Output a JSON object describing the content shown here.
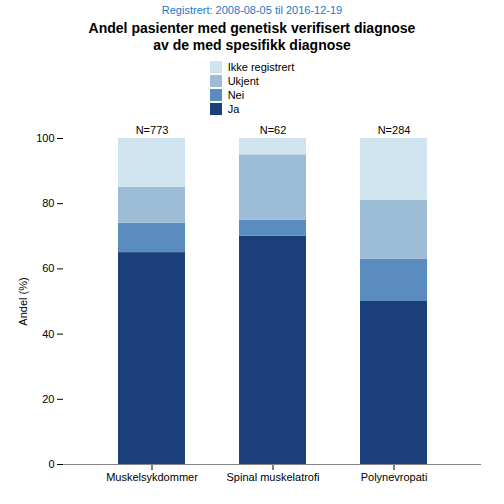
{
  "chart_data": {
    "type": "bar",
    "stacked": true,
    "title": "Andel pasienter med genetisk verifisert diagnose\nav de med spesifikk diagnose",
    "subtitle": "Registrert: 2008-08-05 til 2016-12-19",
    "ylabel": "Andel (%)",
    "categories": [
      "Muskelsykdommer",
      "Spinal muskelatrofi",
      "Polynevropati"
    ],
    "series": [
      {
        "name": "Ja",
        "color": "#1a3f7a",
        "values": [
          65,
          70,
          50
        ]
      },
      {
        "name": "Nei",
        "color": "#5b8cbf",
        "values": [
          9,
          5,
          13
        ]
      },
      {
        "name": "Ukjent",
        "color": "#9dbdd6",
        "values": [
          11,
          20,
          18
        ]
      },
      {
        "name": "Ikke registrert",
        "color": "#d0e5f0",
        "values": [
          15,
          5,
          19
        ]
      }
    ],
    "annotations": [
      {
        "category": "Muskelsykdommer",
        "text": "N=773"
      },
      {
        "category": "Spinal muskelatrofi",
        "text": "N=62"
      },
      {
        "category": "Polynevropati",
        "text": "N=284"
      }
    ],
    "ylim": [
      0,
      100
    ],
    "yticks": [
      0,
      20,
      40,
      60,
      80,
      100
    ],
    "grid": false,
    "legend": "top"
  }
}
